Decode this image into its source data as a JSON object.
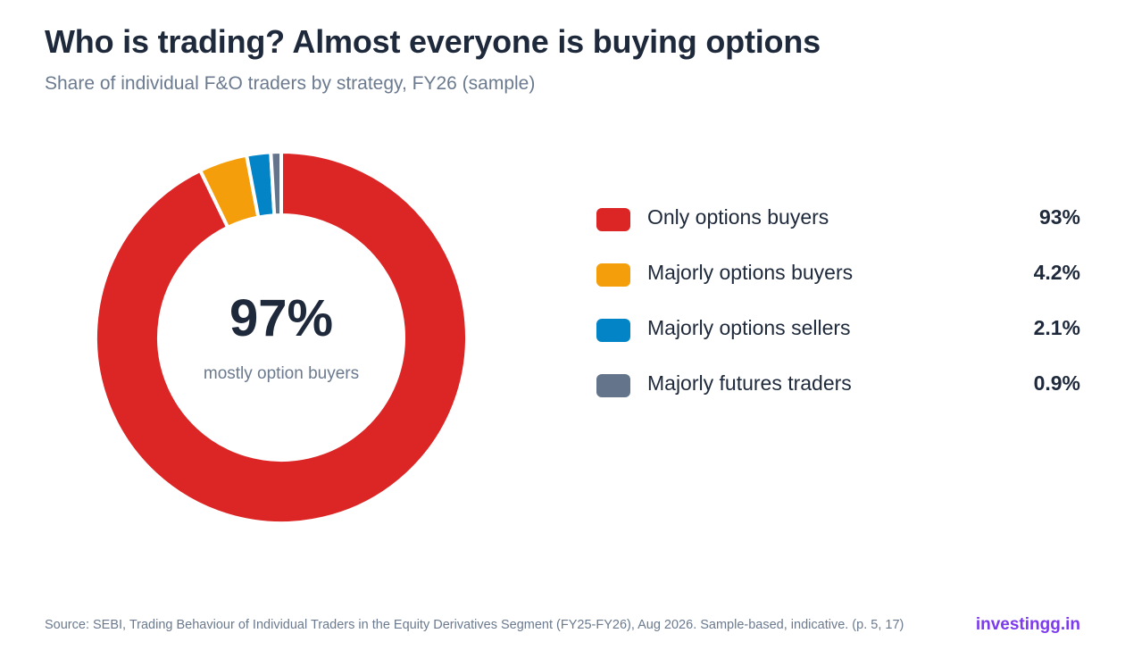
{
  "header": {
    "title": "Who is trading? Almost everyone is buying options",
    "subtitle": "Share of individual F&O traders by strategy, FY26 (sample)"
  },
  "center": {
    "value": "97%",
    "label": "mostly option buyers"
  },
  "footer": {
    "source": "Source: SEBI, Trading Behaviour of Individual Traders in the Equity Derivatives Segment (FY25-FY26), Aug 2026. Sample-based, indicative. (p. 5, 17)",
    "brand": "investingg.in"
  },
  "chart_data": {
    "type": "pie",
    "donut": true,
    "title": "Who is trading? Almost everyone is buying options",
    "subtitle": "Share of individual F&O traders by strategy, FY26 (sample)",
    "legend_position": "right",
    "slices": [
      {
        "label": "Only options buyers",
        "value": 93,
        "display": "93%",
        "color": "#dc2626"
      },
      {
        "label": "Majorly options buyers",
        "value": 4.2,
        "display": "4.2%",
        "color": "#f59e0b"
      },
      {
        "label": "Majorly options sellers",
        "value": 2.1,
        "display": "2.1%",
        "color": "#0284c7"
      },
      {
        "label": "Majorly futures traders",
        "value": 0.9,
        "display": "0.9%",
        "color": "#64748b"
      }
    ]
  }
}
